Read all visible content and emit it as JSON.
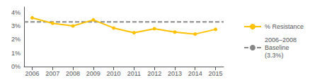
{
  "chart_data": {
    "type": "line",
    "x": [
      2006,
      2007,
      2008,
      2009,
      2010,
      2011,
      2012,
      2013,
      2014,
      2015
    ],
    "xlim": [
      2005.6,
      2015.4
    ],
    "xticks": [
      2006,
      2007,
      2008,
      2009,
      2010,
      2011,
      2012,
      2013,
      2014,
      2015
    ],
    "ylim": [
      0,
      4.4
    ],
    "yticks": [
      {
        "value": 0,
        "label": "0%"
      },
      {
        "value": 1,
        "label": "1%"
      },
      {
        "value": 2,
        "label": "2%"
      },
      {
        "value": 3,
        "label": "3%"
      },
      {
        "value": 4,
        "label": "4%"
      }
    ],
    "grid": false,
    "legend": "right",
    "series": [
      {
        "name": "% Resistance",
        "color": "#FFC000",
        "marker": "circle",
        "line_style": "solid",
        "values": [
          3.6,
          3.2,
          3.0,
          3.45,
          2.85,
          2.5,
          2.8,
          2.55,
          2.4,
          2.75
        ]
      },
      {
        "name": "2006–2008\nBaseline\n(3.3%)",
        "type": "hline",
        "color": "#888888",
        "line_style": "dashed",
        "value": 3.3
      }
    ]
  }
}
